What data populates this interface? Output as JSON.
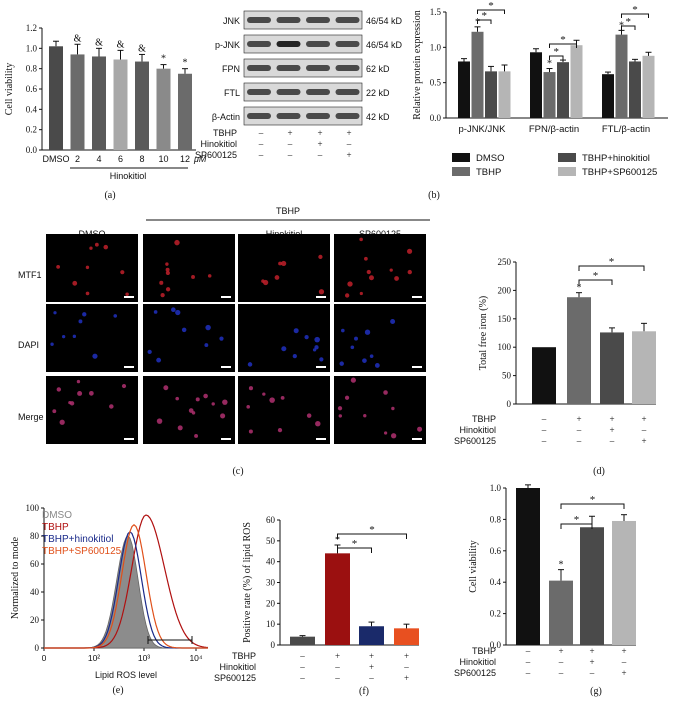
{
  "panels": {
    "a": {
      "caption": "(a)",
      "ylabel": "Cell viability",
      "yticks": [
        "0.0",
        "0.2",
        "0.4",
        "0.6",
        "0.8",
        "1.0",
        "1.2"
      ],
      "xlabel_unit": "μM",
      "group_label": "Hinokitiol",
      "categories": [
        "DMSO",
        "2",
        "4",
        "6",
        "8",
        "10",
        "12"
      ],
      "marks": [
        "",
        "&",
        "&",
        "&",
        "&",
        "*",
        "*"
      ]
    },
    "b": {
      "caption": "(b)",
      "blot_labels": [
        "JNK",
        "p-JNK",
        "FPN",
        "FTL",
        "β-Actin"
      ],
      "blot_sizes": [
        "46/54 kD",
        "46/54 kD",
        "62 kD",
        "22 kD",
        "42 kD"
      ],
      "rows": [
        {
          "label": "TBHP",
          "signs": [
            "–",
            "+",
            "+",
            "+"
          ]
        },
        {
          "label": "Hinokitiol",
          "signs": [
            "–",
            "–",
            "+",
            "–"
          ]
        },
        {
          "label": "SP600125",
          "signs": [
            "–",
            "–",
            "–",
            "+"
          ]
        }
      ],
      "ylabel": "Relative protein expression",
      "yticks": [
        "0.0",
        "0.5",
        "1.0",
        "1.5"
      ],
      "groups": [
        "p-JNK/JNK",
        "FPN/β-actin",
        "FTL/β-actin"
      ],
      "legend": [
        "DMSO",
        "TBHP",
        "TBHP+hinokitiol",
        "TBHP+SP600125"
      ],
      "colors": [
        "#111111",
        "#6b6b6b",
        "#4a4a4a",
        "#b5b5b5"
      ]
    },
    "c": {
      "caption": "(c)",
      "treatment_header": "TBHP",
      "columns": [
        "DMSO",
        "–",
        "Hinokitiol",
        "SP600125"
      ],
      "rows": [
        "MTF1",
        "DAPI",
        "Merge"
      ]
    },
    "d": {
      "caption": "(d)",
      "ylabel": "Total free iron (%)",
      "yticks": [
        "0",
        "50",
        "100",
        "150",
        "200",
        "250"
      ],
      "rows": [
        {
          "label": "TBHP",
          "signs": [
            "–",
            "+",
            "+",
            "+"
          ]
        },
        {
          "label": "Hinokitiol",
          "signs": [
            "–",
            "–",
            "+",
            "–"
          ]
        },
        {
          "label": "SP600125",
          "signs": [
            "–",
            "–",
            "–",
            "+"
          ]
        }
      ]
    },
    "e": {
      "caption": "(e)",
      "ylabel": "Normalized to mode",
      "xlabel": "Lipid ROS level",
      "yticks": [
        "0",
        "20",
        "40",
        "60",
        "80",
        "100"
      ],
      "xticks": [
        "0",
        "10²",
        "10³",
        "10⁴"
      ],
      "legend": [
        {
          "name": "DMSO",
          "color": "#888888"
        },
        {
          "name": "TBHP",
          "color": "#b01010"
        },
        {
          "name": "TBHP+hinokitiol",
          "color": "#1a2a8a"
        },
        {
          "name": "TBHP+SP600125",
          "color": "#e0501a"
        }
      ]
    },
    "f": {
      "caption": "(f)",
      "ylabel": "Positive rate (%) of lipid ROS",
      "yticks": [
        "0",
        "10",
        "20",
        "30",
        "40",
        "50",
        "60"
      ],
      "rows": [
        {
          "label": "TBHP",
          "signs": [
            "–",
            "+",
            "+",
            "+"
          ]
        },
        {
          "label": "Hinokitiol",
          "signs": [
            "–",
            "–",
            "+",
            "–"
          ]
        },
        {
          "label": "SP600125",
          "signs": [
            "–",
            "–",
            "–",
            "+"
          ]
        }
      ]
    },
    "g": {
      "caption": "(g)",
      "ylabel": "Cell viability",
      "yticks": [
        "0.0",
        "0.2",
        "0.4",
        "0.6",
        "0.8",
        "1.0"
      ],
      "rows": [
        {
          "label": "TBHP",
          "signs": [
            "–",
            "+",
            "+",
            "+"
          ]
        },
        {
          "label": "Hinokitiol",
          "signs": [
            "–",
            "–",
            "+",
            "–"
          ]
        },
        {
          "label": "SP600125",
          "signs": [
            "–",
            "–",
            "–",
            "+"
          ]
        }
      ]
    }
  },
  "chart_data": [
    {
      "id": "a",
      "type": "bar",
      "ylim": [
        0,
        1.2
      ],
      "categories": [
        "DMSO",
        "2",
        "4",
        "6",
        "8",
        "10",
        "12"
      ],
      "values": [
        1.02,
        0.94,
        0.92,
        0.89,
        0.87,
        0.8,
        0.75
      ],
      "errors": [
        0.05,
        0.1,
        0.08,
        0.09,
        0.07,
        0.04,
        0.05
      ],
      "colors": [
        "#4a4a4a",
        "#6b6b6b",
        "#5a5a5a",
        "#a8a8a8",
        "#5a5a5a",
        "#8a8a8a",
        "#6b6b6b"
      ]
    },
    {
      "id": "b",
      "type": "bar",
      "ylim": [
        0,
        1.5
      ],
      "groups": [
        "p-JNK/JNK",
        "FPN/β-actin",
        "FTL/β-actin"
      ],
      "series": [
        {
          "name": "DMSO",
          "values": [
            0.8,
            0.93,
            0.62
          ],
          "errors": [
            0.04,
            0.05,
            0.03
          ]
        },
        {
          "name": "TBHP",
          "values": [
            1.22,
            0.65,
            1.18
          ],
          "errors": [
            0.07,
            0.05,
            0.06
          ]
        },
        {
          "name": "TBHP+hinokitiol",
          "values": [
            0.66,
            0.79,
            0.8
          ],
          "errors": [
            0.07,
            0.03,
            0.03
          ]
        },
        {
          "name": "TBHP+SP600125",
          "values": [
            0.66,
            1.03,
            0.88
          ],
          "errors": [
            0.09,
            0.07,
            0.05
          ]
        }
      ]
    },
    {
      "id": "d",
      "type": "bar",
      "ylim": [
        0,
        250
      ],
      "values": [
        100,
        188,
        126,
        128
      ],
      "errors": [
        0,
        8,
        8,
        14
      ],
      "colors": [
        "#111111",
        "#6b6b6b",
        "#4a4a4a",
        "#b5b5b5"
      ]
    },
    {
      "id": "e",
      "type": "line",
      "xscale": "log",
      "ylim": [
        0,
        100
      ],
      "series": [
        "DMSO",
        "TBHP",
        "TBHP+hinokitiol",
        "TBHP+SP600125"
      ],
      "peaks_x": [
        700,
        1000,
        600,
        650
      ]
    },
    {
      "id": "f",
      "type": "bar",
      "ylim": [
        0,
        60
      ],
      "values": [
        4,
        44,
        9,
        8
      ],
      "errors": [
        0.5,
        4,
        2,
        2
      ],
      "colors": [
        "#4a4a4a",
        "#9b1010",
        "#1a2a6a",
        "#e85020"
      ]
    },
    {
      "id": "g",
      "type": "bar",
      "ylim": [
        0,
        1.0
      ],
      "values": [
        1.0,
        0.41,
        0.75,
        0.79
      ],
      "errors": [
        0.02,
        0.07,
        0.07,
        0.04
      ],
      "colors": [
        "#111111",
        "#6b6b6b",
        "#4a4a4a",
        "#b5b5b5"
      ]
    }
  ]
}
